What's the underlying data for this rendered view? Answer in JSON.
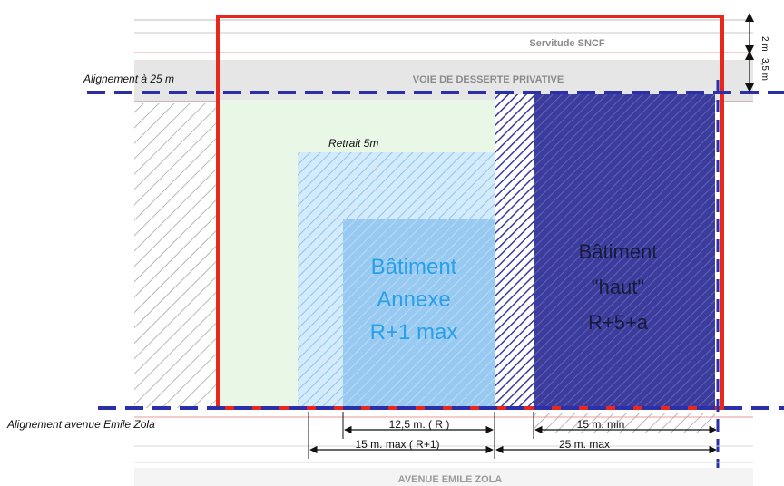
{
  "labels": {
    "servitude": "Servitude SNCF",
    "voie": "VOIE DE DESSERTE PRIVATIVE",
    "alignement_25": "Alignement à 25 m",
    "retrait": "Retrait 5m",
    "annexe_line1": "Bâtiment",
    "annexe_line2": "Annexe",
    "annexe_line3": "R+1 max",
    "haut_line1": "Bâtiment",
    "haut_line2": "\"haut\"",
    "haut_line3": "R+5+a",
    "alignement_zola": "Alignement avenue Emile Zola",
    "avenue": "AVENUE EMILE ZOLA",
    "side_2m": "2 m",
    "side_35m": "3,5 m"
  },
  "dimensions": {
    "d_12_5": "12,5 m. ( R )",
    "d_15_max_r1": "15 m. max ( R+1)",
    "d_15_min": "15 m. min",
    "d_25_max": "25 m. max"
  },
  "colors": {
    "outline_red": "#e8281c",
    "alignment_dash": "#2b2fa8",
    "haut_fill": "#3f3fa0",
    "annexe_fill": "#8fc4f0",
    "annexe_text": "#2aa0e8",
    "retrait_fill": "#cfe8f8",
    "zone_green": "#e8f6e6"
  }
}
